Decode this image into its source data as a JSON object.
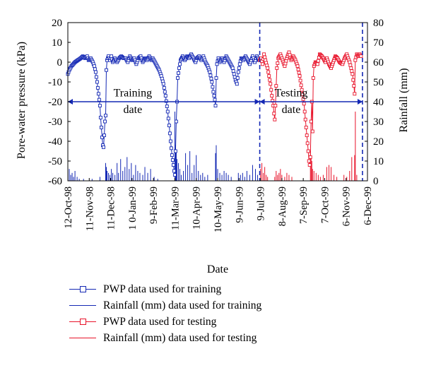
{
  "chart_data": {
    "type": "line",
    "title": "",
    "xlabel": "Date",
    "ylabel_left": "Pore-water pressure (kPa)",
    "ylabel_right": "Rainfall (mm)",
    "ylim_left": [
      -60,
      20
    ],
    "yticks_left": [
      20,
      10,
      0,
      -10,
      -20,
      -30,
      -40,
      -50,
      -60
    ],
    "ylim_right": [
      0,
      80
    ],
    "yticks_right": [
      80,
      70,
      60,
      50,
      40,
      30,
      20,
      10,
      0
    ],
    "x_tick_labels": [
      "12-Oct-98",
      "11-Nov-98",
      "11-Dec-98",
      "1 0-Jan-99",
      "9-Feb-99",
      "11-Mar-99",
      "10-Apr-99",
      "10-May-99",
      "9-Jun-99",
      "9-Jul-99",
      "8-Aug-99",
      "7-Sep-99",
      "7-Oct-99",
      "6-Nov-99",
      "6-Dec-99"
    ],
    "x_tick_dates": [
      "1998-10-12",
      "1998-11-11",
      "1998-12-11",
      "1999-01-10",
      "1999-02-09",
      "1999-03-11",
      "1999-04-10",
      "1999-05-10",
      "1999-06-09",
      "1999-07-09",
      "1999-08-08",
      "1999-09-07",
      "1999-10-07",
      "1999-11-06",
      "1999-12-06"
    ],
    "x_range": [
      "1998-10-12",
      "1999-12-06"
    ],
    "annotations": [
      {
        "text": "Training",
        "x": "1999-01-11",
        "y": -15.5
      },
      {
        "text": "date",
        "x": "1999-01-11",
        "y": -24
      },
      {
        "text": "Testing",
        "x": "1999-08-21",
        "y": -15.5
      },
      {
        "text": "date",
        "x": "1999-08-21",
        "y": -24
      }
    ],
    "period_arrows": [
      {
        "from": "1998-10-12",
        "to": "1999-07-08",
        "y": -20
      },
      {
        "from": "1999-07-08",
        "to": "1999-11-29",
        "y": -20
      }
    ],
    "divider_dates": [
      "1999-07-08",
      "1999-11-29"
    ],
    "pwp_training_keypoints": [
      [
        "1998-10-12",
        -6
      ],
      [
        "1998-10-14",
        -4
      ],
      [
        "1998-10-17",
        -2
      ],
      [
        "1998-10-22",
        0
      ],
      [
        "1998-10-26",
        1
      ],
      [
        "1998-10-30",
        2
      ],
      [
        "1998-11-02",
        3
      ],
      [
        "1998-11-05",
        2
      ],
      [
        "1998-11-08",
        3
      ],
      [
        "1998-11-10",
        1
      ],
      [
        "1998-11-13",
        2
      ],
      [
        "1998-11-16",
        0
      ],
      [
        "1998-11-18",
        -2
      ],
      [
        "1998-11-20",
        -5
      ],
      [
        "1998-11-22",
        -10
      ],
      [
        "1998-11-24",
        -16
      ],
      [
        "1998-11-26",
        -22
      ],
      [
        "1998-11-27",
        -28
      ],
      [
        "1998-11-28",
        -33
      ],
      [
        "1998-11-29",
        -38
      ],
      [
        "1998-11-30",
        -42
      ],
      [
        "1998-12-01",
        -43
      ],
      [
        "1998-12-02",
        -37
      ],
      [
        "1998-12-03",
        -30
      ],
      [
        "1998-12-04",
        -27
      ],
      [
        "1998-12-05",
        -4
      ],
      [
        "1998-12-06",
        1
      ],
      [
        "1998-12-08",
        3
      ],
      [
        "1998-12-10",
        1
      ],
      [
        "1998-12-12",
        3
      ],
      [
        "1998-12-14",
        0
      ],
      [
        "1998-12-17",
        2
      ],
      [
        "1998-12-20",
        0
      ],
      [
        "1998-12-23",
        2
      ],
      [
        "1998-12-26",
        3
      ],
      [
        "1998-12-29",
        2
      ],
      [
        "1999-01-01",
        2
      ],
      [
        "1999-01-04",
        0
      ],
      [
        "1999-01-07",
        3
      ],
      [
        "1999-01-10",
        1
      ],
      [
        "1999-01-13",
        2
      ],
      [
        "1999-01-16",
        -1
      ],
      [
        "1999-01-19",
        2
      ],
      [
        "1999-01-22",
        3
      ],
      [
        "1999-01-25",
        0
      ],
      [
        "1999-01-28",
        2
      ],
      [
        "1999-01-31",
        1
      ],
      [
        "1999-02-03",
        3
      ],
      [
        "1999-02-06",
        1
      ],
      [
        "1999-02-08",
        2
      ],
      [
        "1999-02-11",
        0
      ],
      [
        "1999-02-14",
        -2
      ],
      [
        "1999-02-17",
        -4
      ],
      [
        "1999-02-20",
        -7
      ],
      [
        "1999-02-23",
        -11
      ],
      [
        "1999-02-26",
        -17
      ],
      [
        "1999-03-01",
        -25
      ],
      [
        "1999-03-03",
        -32
      ],
      [
        "1999-03-05",
        -40
      ],
      [
        "1999-03-07",
        -47
      ],
      [
        "1999-03-09",
        -52
      ],
      [
        "1999-03-10",
        -55
      ],
      [
        "1999-03-11",
        -57
      ],
      [
        "1999-03-12",
        -45
      ],
      [
        "1999-03-13",
        -30
      ],
      [
        "1999-03-14",
        -20
      ],
      [
        "1999-03-15",
        -8
      ],
      [
        "1999-03-17",
        -3
      ],
      [
        "1999-03-19",
        1
      ],
      [
        "1999-03-22",
        3
      ],
      [
        "1999-03-25",
        1
      ],
      [
        "1999-03-28",
        3
      ],
      [
        "1999-03-31",
        2
      ],
      [
        "1999-04-03",
        4
      ],
      [
        "1999-04-06",
        2
      ],
      [
        "1999-04-09",
        0
      ],
      [
        "1999-04-11",
        2
      ],
      [
        "1999-04-14",
        3
      ],
      [
        "1999-04-17",
        1
      ],
      [
        "1999-04-20",
        3
      ],
      [
        "1999-04-23",
        0
      ],
      [
        "1999-04-26",
        -2
      ],
      [
        "1999-04-29",
        -5
      ],
      [
        "1999-05-02",
        -10
      ],
      [
        "1999-05-04",
        -15
      ],
      [
        "1999-05-06",
        -19
      ],
      [
        "1999-05-07",
        -22
      ],
      [
        "1999-05-08",
        -8
      ],
      [
        "1999-05-09",
        -1
      ],
      [
        "1999-05-11",
        2
      ],
      [
        "1999-05-13",
        0
      ],
      [
        "1999-05-16",
        2
      ],
      [
        "1999-05-19",
        0
      ],
      [
        "1999-05-22",
        3
      ],
      [
        "1999-05-25",
        1
      ],
      [
        "1999-05-28",
        -1
      ],
      [
        "1999-05-31",
        -3
      ],
      [
        "1999-06-02",
        -6
      ],
      [
        "1999-06-04",
        -9
      ],
      [
        "1999-06-06",
        -11
      ],
      [
        "1999-06-08",
        -5
      ],
      [
        "1999-06-10",
        -1
      ],
      [
        "1999-06-12",
        2
      ],
      [
        "1999-06-15",
        1
      ],
      [
        "1999-06-18",
        3
      ],
      [
        "1999-06-21",
        1
      ],
      [
        "1999-06-24",
        -1
      ],
      [
        "1999-06-26",
        1
      ],
      [
        "1999-06-28",
        3
      ],
      [
        "1999-07-01",
        0
      ],
      [
        "1999-07-04",
        3
      ],
      [
        "1999-07-07",
        1
      ]
    ],
    "pwp_testing_keypoints": [
      [
        "1999-07-08",
        1
      ],
      [
        "1999-07-10",
        2
      ],
      [
        "1999-07-12",
        -1
      ],
      [
        "1999-07-14",
        4
      ],
      [
        "1999-07-16",
        1
      ],
      [
        "1999-07-19",
        -3
      ],
      [
        "1999-07-21",
        -7
      ],
      [
        "1999-07-23",
        -11
      ],
      [
        "1999-07-25",
        -17
      ],
      [
        "1999-07-27",
        -22
      ],
      [
        "1999-07-28",
        -26
      ],
      [
        "1999-07-29",
        -29
      ],
      [
        "1999-07-30",
        -22
      ],
      [
        "1999-07-31",
        -12
      ],
      [
        "1999-08-01",
        -3
      ],
      [
        "1999-08-03",
        2
      ],
      [
        "1999-08-06",
        4
      ],
      [
        "1999-08-09",
        1
      ],
      [
        "1999-08-12",
        -2
      ],
      [
        "1999-08-15",
        2
      ],
      [
        "1999-08-18",
        5
      ],
      [
        "1999-08-21",
        1
      ],
      [
        "1999-08-24",
        3
      ],
      [
        "1999-08-27",
        1
      ],
      [
        "1999-08-30",
        -2
      ],
      [
        "1999-09-02",
        -7
      ],
      [
        "1999-09-05",
        -14
      ],
      [
        "1999-09-08",
        -21
      ],
      [
        "1999-09-10",
        -29
      ],
      [
        "1999-09-12",
        -37
      ],
      [
        "1999-09-14",
        -45
      ],
      [
        "1999-09-15",
        -50
      ],
      [
        "1999-09-16",
        -52
      ],
      [
        "1999-09-17",
        -48
      ],
      [
        "1999-09-18",
        -30
      ],
      [
        "1999-09-19",
        -20
      ],
      [
        "1999-09-20",
        -35
      ],
      [
        "1999-09-21",
        -8
      ],
      [
        "1999-09-22",
        -2
      ],
      [
        "1999-09-24",
        0
      ],
      [
        "1999-09-27",
        -1
      ],
      [
        "1999-09-30",
        4
      ],
      [
        "1999-10-03",
        3
      ],
      [
        "1999-10-05",
        2
      ],
      [
        "1999-10-08",
        0
      ],
      [
        "1999-10-10",
        2
      ],
      [
        "1999-10-13",
        -1
      ],
      [
        "1999-10-16",
        -3
      ],
      [
        "1999-10-19",
        0
      ],
      [
        "1999-10-22",
        3
      ],
      [
        "1999-10-25",
        2
      ],
      [
        "1999-10-28",
        0
      ],
      [
        "1999-11-01",
        -1
      ],
      [
        "1999-11-04",
        2
      ],
      [
        "1999-11-07",
        4
      ],
      [
        "1999-11-09",
        2
      ],
      [
        "1999-11-11",
        0
      ],
      [
        "1999-11-13",
        -3
      ],
      [
        "1999-11-15",
        -6
      ],
      [
        "1999-11-17",
        -12
      ],
      [
        "1999-11-18",
        -16
      ],
      [
        "1999-11-19",
        1
      ],
      [
        "1999-11-21",
        4
      ],
      [
        "1999-11-23",
        3
      ],
      [
        "1999-11-25",
        4
      ],
      [
        "1999-11-27",
        3
      ]
    ],
    "rainfall_training": [
      [
        "1998-10-12",
        3
      ],
      [
        "1998-10-14",
        6
      ],
      [
        "1998-10-16",
        3
      ],
      [
        "1998-10-18",
        4
      ],
      [
        "1998-10-20",
        2
      ],
      [
        "1998-10-22",
        5
      ],
      [
        "1998-10-25",
        2
      ],
      [
        "1998-10-28",
        1
      ],
      [
        "1998-11-03",
        1
      ],
      [
        "1998-11-15",
        1
      ],
      [
        "1998-11-26",
        2
      ],
      [
        "1998-12-04",
        9
      ],
      [
        "1998-12-05",
        7
      ],
      [
        "1998-12-06",
        5
      ],
      [
        "1998-12-08",
        4
      ],
      [
        "1998-12-10",
        3
      ],
      [
        "1998-12-12",
        6
      ],
      [
        "1998-12-14",
        4
      ],
      [
        "1998-12-17",
        3
      ],
      [
        "1998-12-20",
        9
      ],
      [
        "1998-12-22",
        4
      ],
      [
        "1998-12-25",
        11
      ],
      [
        "1998-12-28",
        5
      ],
      [
        "1998-12-31",
        7
      ],
      [
        "1999-01-03",
        12
      ],
      [
        "1999-01-06",
        6
      ],
      [
        "1999-01-09",
        9
      ],
      [
        "1999-01-12",
        3
      ],
      [
        "1999-01-15",
        8
      ],
      [
        "1999-01-18",
        5
      ],
      [
        "1999-01-21",
        4
      ],
      [
        "1999-01-25",
        3
      ],
      [
        "1999-01-28",
        7
      ],
      [
        "1999-02-01",
        4
      ],
      [
        "1999-02-05",
        6
      ],
      [
        "1999-02-10",
        2
      ],
      [
        "1999-02-15",
        1
      ],
      [
        "1999-03-11",
        35
      ],
      [
        "1999-03-12",
        18
      ],
      [
        "1999-03-13",
        15
      ],
      [
        "1999-03-14",
        11
      ],
      [
        "1999-03-16",
        9
      ],
      [
        "1999-03-18",
        6
      ],
      [
        "1999-03-20",
        3
      ],
      [
        "1999-03-23",
        5
      ],
      [
        "1999-03-26",
        14
      ],
      [
        "1999-03-29",
        8
      ],
      [
        "1999-04-01",
        15
      ],
      [
        "1999-04-04",
        4
      ],
      [
        "1999-04-07",
        8
      ],
      [
        "1999-04-10",
        13
      ],
      [
        "1999-04-13",
        5
      ],
      [
        "1999-04-16",
        3
      ],
      [
        "1999-04-19",
        4
      ],
      [
        "1999-04-22",
        2
      ],
      [
        "1999-04-26",
        3
      ],
      [
        "1999-05-07",
        14
      ],
      [
        "1999-05-08",
        18
      ],
      [
        "1999-05-10",
        6
      ],
      [
        "1999-05-13",
        4
      ],
      [
        "1999-05-16",
        3
      ],
      [
        "1999-05-19",
        5
      ],
      [
        "1999-05-22",
        4
      ],
      [
        "1999-05-25",
        3
      ],
      [
        "1999-05-29",
        2
      ],
      [
        "1999-06-08",
        4
      ],
      [
        "1999-06-11",
        3
      ],
      [
        "1999-06-14",
        4
      ],
      [
        "1999-06-17",
        2
      ],
      [
        "1999-06-20",
        5
      ],
      [
        "1999-06-24",
        3
      ],
      [
        "1999-06-28",
        8
      ],
      [
        "1999-07-02",
        6
      ],
      [
        "1999-07-05",
        3
      ]
    ],
    "rainfall_testing": [
      [
        "1999-07-09",
        6
      ],
      [
        "1999-07-11",
        9
      ],
      [
        "1999-07-13",
        4
      ],
      [
        "1999-07-15",
        7
      ],
      [
        "1999-07-17",
        3
      ],
      [
        "1999-07-19",
        2
      ],
      [
        "1999-07-29",
        2
      ],
      [
        "1999-07-31",
        5
      ],
      [
        "1999-08-02",
        3
      ],
      [
        "1999-08-04",
        4
      ],
      [
        "1999-08-06",
        6
      ],
      [
        "1999-08-08",
        3
      ],
      [
        "1999-08-12",
        2
      ],
      [
        "1999-08-15",
        4
      ],
      [
        "1999-08-18",
        3
      ],
      [
        "1999-08-22",
        2
      ],
      [
        "1999-09-17",
        15
      ],
      [
        "1999-09-18",
        12
      ],
      [
        "1999-09-19",
        10
      ],
      [
        "1999-09-20",
        6
      ],
      [
        "1999-09-22",
        5
      ],
      [
        "1999-09-25",
        4
      ],
      [
        "1999-09-28",
        3
      ],
      [
        "1999-10-01",
        2
      ],
      [
        "1999-10-05",
        3
      ],
      [
        "1999-10-10",
        7
      ],
      [
        "1999-10-13",
        8
      ],
      [
        "1999-10-16",
        7
      ],
      [
        "1999-10-20",
        3
      ],
      [
        "1999-10-24",
        2
      ],
      [
        "1999-11-03",
        3
      ],
      [
        "1999-11-07",
        2
      ],
      [
        "1999-11-11",
        5
      ],
      [
        "1999-11-14",
        12
      ],
      [
        "1999-11-18",
        13
      ],
      [
        "1999-11-19",
        35
      ],
      [
        "1999-11-21",
        3
      ]
    ]
  },
  "legend": [
    {
      "label": "PWP data used for training",
      "color": "#1428b4",
      "marker": "square"
    },
    {
      "label": "Rainfall (mm) data used for training",
      "color": "#1428b4",
      "marker": "none"
    },
    {
      "label": "PWP data used for testing",
      "color": "#e8132a",
      "marker": "square"
    },
    {
      "label": "Rainfall (mm) data used for testing",
      "color": "#e8132a",
      "marker": "none"
    }
  ],
  "colors": {
    "training": "#1428b4",
    "testing": "#e8132a",
    "axis": "#000000",
    "arrow": "#1428b4"
  }
}
